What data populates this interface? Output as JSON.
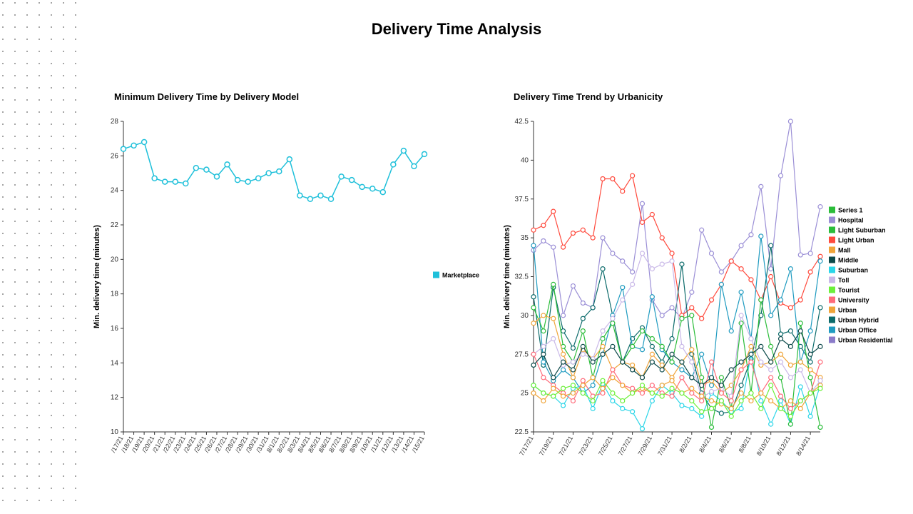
{
  "page": {
    "title": "Delivery Time Analysis"
  },
  "dots": {
    "color": "#888888",
    "radius": 1.0,
    "cols": 7,
    "rows": 42,
    "xstep": 17,
    "ystep": 17,
    "xoff": 4,
    "yoff": 4
  },
  "left_chart": {
    "type": "line",
    "title": "Minimum Delivery Time by Delivery Model",
    "ylabel": "Min. delivery time (minutes)",
    "ylim": [
      10,
      28
    ],
    "ytick_step": 2,
    "yticks": [
      10,
      12,
      14,
      16,
      18,
      20,
      22,
      24,
      26,
      28
    ],
    "x_labels": [
      "/17/21",
      "/18/21",
      "/19/21",
      "/20/21",
      "/21/21",
      "/22/21",
      "/23/21",
      "/24/21",
      "/25/21",
      "/26/21",
      "/27/21",
      "/28/21",
      "/29/21",
      "/30/21",
      "/31/21",
      "8/1/21",
      "8/2/21",
      "8/3/21",
      "8/4/21",
      "8/5/21",
      "8/6/21",
      "8/7/21",
      "8/8/21",
      "8/9/21",
      "/10/21",
      "/11/21",
      "/12/21",
      "/13/21",
      "/14/21",
      "/15/21"
    ],
    "series": [
      {
        "name": "Marketplace",
        "color": "#1fc0da",
        "values": [
          26.4,
          26.6,
          26.8,
          24.7,
          24.5,
          24.5,
          24.4,
          25.3,
          25.2,
          24.8,
          25.5,
          24.6,
          24.5,
          24.7,
          25.0,
          25.1,
          25.8,
          23.7,
          23.5,
          23.7,
          23.5,
          24.8,
          24.6,
          24.2,
          24.1,
          23.9,
          25.5,
          26.3,
          25.4,
          26.1
        ],
        "line_width": 1.5,
        "marker": "o",
        "marker_size": 3.5
      }
    ],
    "legend_pos": "right",
    "background_color": "#ffffff",
    "axis_color": "#333333",
    "grid": false
  },
  "right_chart": {
    "type": "line",
    "title": "Delivery Time Trend by Urbanicity",
    "ylabel": "Min. delivery time (minutes)",
    "ylim": [
      22.5,
      42.5
    ],
    "ytick_step": 2.5,
    "yticks": [
      22.5,
      25,
      27.5,
      30,
      32.5,
      35,
      37.5,
      40,
      42.5
    ],
    "x_labels": [
      "7/17/21",
      "7/19/21",
      "7/21/21",
      "7/23/21",
      "7/25/21",
      "7/27/21",
      "7/29/21",
      "7/31/21",
      "8/2/21",
      "8/4/21",
      "8/6/21",
      "8/8/21",
      "8/10/21",
      "8/12/21",
      "8/14/21"
    ],
    "x_count": 30,
    "legend": [
      {
        "name": "Series 1",
        "color": "#2bbd3a"
      },
      {
        "name": "Hospital",
        "color": "#9b8fd6"
      },
      {
        "name": "Light Suburban",
        "color": "#2bbd3a"
      },
      {
        "name": "Light Urban",
        "color": "#ff4a3d"
      },
      {
        "name": "Mall",
        "color": "#f0a53a"
      },
      {
        "name": "Middle",
        "color": "#0c4a4a"
      },
      {
        "name": "Suburban",
        "color": "#2bd6e8"
      },
      {
        "name": "Toll",
        "color": "#c9b8e8"
      },
      {
        "name": "Tourist",
        "color": "#6cf03a"
      },
      {
        "name": "University",
        "color": "#ff6b7a"
      },
      {
        "name": "Urban",
        "color": "#f0a53a"
      },
      {
        "name": "Urban Hybrid",
        "color": "#0c6b6b"
      },
      {
        "name": "Urban Office",
        "color": "#1f9bc0"
      },
      {
        "name": "Urban Residential",
        "color": "#8b7bc9"
      }
    ],
    "series": [
      {
        "name": "Hospital",
        "color": "#9b8fd6",
        "values": [
          34.2,
          34.8,
          34.4,
          30.0,
          31.9,
          30.8,
          30.5,
          35.0,
          34.0,
          33.5,
          32.8,
          37.2,
          31.0,
          30.0,
          30.5,
          29.8,
          31.5,
          35.5,
          34.0,
          32.8,
          33.5,
          34.5,
          35.2,
          38.3,
          33.0,
          39.0,
          42.5,
          33.9,
          34.0,
          37.0
        ],
        "line_width": 1.2,
        "marker": "o",
        "marker_size": 3
      },
      {
        "name": "Light Urban",
        "color": "#ff4a3d",
        "values": [
          35.5,
          35.8,
          36.7,
          34.4,
          35.3,
          35.5,
          35.0,
          38.8,
          38.8,
          38.0,
          39.0,
          36.0,
          36.5,
          35.0,
          34.0,
          30.0,
          30.5,
          29.8,
          31.0,
          32.0,
          33.5,
          33.0,
          32.3,
          31.0,
          32.5,
          30.8,
          30.5,
          31.0,
          32.8,
          33.8
        ],
        "line_width": 1.2,
        "marker": "o",
        "marker_size": 3
      },
      {
        "name": "Urban Hybrid",
        "color": "#0c6b6b",
        "values": [
          31.2,
          26.8,
          31.8,
          29.0,
          27.9,
          29.8,
          30.5,
          33.0,
          30.0,
          27.0,
          28.5,
          29.2,
          28.0,
          27.0,
          28.5,
          33.3,
          27.5,
          25.0,
          24.0,
          23.7,
          23.8,
          25.5,
          27.2,
          30.0,
          34.5,
          28.8,
          29.0,
          28.0,
          27.0,
          30.5
        ],
        "line_width": 1.2,
        "marker": "o",
        "marker_size": 3
      },
      {
        "name": "Urban Office",
        "color": "#1f9bc0",
        "values": [
          34.5,
          27.0,
          25.8,
          26.5,
          26.0,
          25.0,
          25.5,
          27.5,
          30.0,
          31.8,
          28.0,
          27.8,
          31.2,
          27.8,
          27.0,
          26.5,
          26.0,
          27.5,
          25.5,
          32.0,
          29.0,
          31.5,
          28.5,
          35.1,
          30.0,
          31.0,
          33.0,
          27.0,
          29.0,
          33.5
        ],
        "line_width": 1.2,
        "marker": "o",
        "marker_size": 3
      },
      {
        "name": "Suburban",
        "color": "#2bd6e8",
        "values": [
          25.5,
          25.0,
          24.8,
          24.2,
          25.3,
          25.5,
          24.0,
          25.6,
          24.5,
          24.0,
          23.8,
          22.7,
          24.5,
          25.5,
          25.0,
          24.2,
          24.0,
          23.5,
          25.0,
          24.5,
          23.8,
          24.0,
          27.5,
          24.5,
          23.0,
          24.5,
          23.0,
          25.4,
          23.5,
          25.5
        ],
        "line_width": 1.2,
        "marker": "o",
        "marker_size": 3
      },
      {
        "name": "Light Suburban",
        "color": "#2bbd3a",
        "values": [
          30.5,
          29.0,
          32.0,
          28.0,
          27.0,
          29.0,
          26.0,
          28.5,
          29.5,
          27.0,
          28.0,
          29.0,
          28.5,
          28.0,
          27.0,
          29.8,
          30.0,
          26.0,
          22.8,
          26.0,
          24.0,
          29.5,
          25.0,
          31.0,
          28.0,
          26.0,
          23.0,
          29.5,
          26.0,
          22.8
        ],
        "line_width": 1.2,
        "marker": "o",
        "marker_size": 3
      },
      {
        "name": "Urban",
        "color": "#f0a53a",
        "values": [
          29.5,
          30.0,
          29.8,
          27.5,
          26.0,
          27.8,
          27.2,
          28.0,
          26.5,
          27.0,
          26.8,
          26.0,
          27.5,
          26.8,
          26.0,
          27.0,
          27.8,
          25.5,
          25.8,
          25.0,
          25.5,
          26.5,
          28.0,
          26.8,
          27.0,
          27.5,
          26.8,
          27.0,
          26.5,
          26.0
        ],
        "line_width": 1.2,
        "marker": "o",
        "marker_size": 3
      },
      {
        "name": "Toll",
        "color": "#c9b8e8",
        "values": [
          27.5,
          28.0,
          28.5,
          26.8,
          27.0,
          27.5,
          27.2,
          29.0,
          29.8,
          31.0,
          32.0,
          34.0,
          33.0,
          33.3,
          33.5,
          28.0,
          27.0,
          24.7,
          25.1,
          25.3,
          24.8,
          30.0,
          28.5,
          27.0,
          26.5,
          27.0,
          26.0,
          26.5,
          25.0,
          25.8
        ],
        "line_width": 1.2,
        "marker": "o",
        "marker_size": 3
      },
      {
        "name": "University",
        "color": "#ff6b7a",
        "values": [
          27.5,
          26.0,
          25.5,
          25.0,
          24.5,
          25.8,
          24.8,
          25.0,
          26.5,
          25.5,
          25.3,
          25.0,
          25.5,
          25.0,
          24.8,
          26.0,
          25.0,
          24.5,
          27.0,
          25.0,
          24.5,
          26.5,
          27.0,
          25.0,
          26.0,
          24.8,
          24.0,
          24.5,
          25.0,
          27.0
        ],
        "line_width": 1.2,
        "marker": "o",
        "marker_size": 3
      },
      {
        "name": "Mall",
        "color": "#f0a53a",
        "values": [
          25.0,
          24.5,
          25.3,
          24.8,
          25.0,
          25.5,
          26.0,
          25.3,
          26.0,
          25.5,
          25.0,
          25.3,
          25.0,
          25.5,
          25.8,
          25.0,
          25.3,
          24.8,
          24.5,
          24.3,
          24.0,
          25.0,
          24.5,
          25.0,
          24.5,
          24.0,
          24.5,
          24.0,
          25.0,
          25.5
        ],
        "line_width": 1.2,
        "marker": "o",
        "marker_size": 3
      },
      {
        "name": "Middle",
        "color": "#0c4a4a",
        "values": [
          26.8,
          27.5,
          26.0,
          27.0,
          26.5,
          28.0,
          27.0,
          27.5,
          28.0,
          27.0,
          26.5,
          26.0,
          27.0,
          26.5,
          27.5,
          27.0,
          26.0,
          25.5,
          26.0,
          25.5,
          26.5,
          27.0,
          27.5,
          28.0,
          27.0,
          28.5,
          28.0,
          29.0,
          27.5,
          28.0
        ],
        "line_width": 1.2,
        "marker": "o",
        "marker_size": 3
      },
      {
        "name": "Tourist",
        "color": "#6cf03a",
        "values": [
          25.5,
          25.0,
          24.8,
          25.3,
          25.5,
          25.0,
          24.5,
          25.8,
          25.0,
          24.5,
          25.0,
          25.5,
          25.0,
          24.8,
          25.3,
          25.0,
          24.5,
          23.8,
          24.0,
          24.5,
          23.5,
          24.5,
          25.0,
          24.0,
          25.5,
          24.0,
          23.5,
          24.5,
          25.0,
          25.3
        ],
        "line_width": 1.2,
        "marker": "o",
        "marker_size": 3
      }
    ],
    "legend_pos": "right",
    "background_color": "#ffffff",
    "axis_color": "#333333",
    "grid": false
  }
}
